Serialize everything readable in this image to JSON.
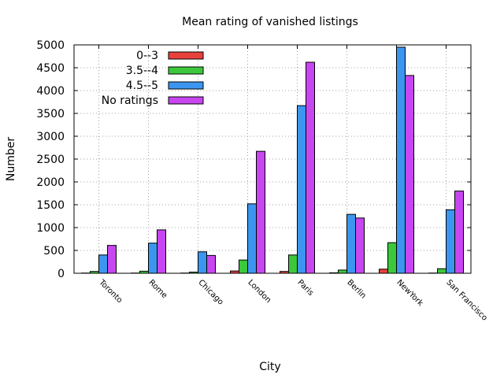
{
  "chart_data": {
    "type": "bar",
    "title": "Mean rating of vanished listings",
    "xlabel": "City",
    "ylabel": "Number",
    "ylim": [
      0,
      5000
    ],
    "yticks": [
      0,
      500,
      1000,
      1500,
      2000,
      2500,
      3000,
      3500,
      4000,
      4500,
      5000
    ],
    "grid": true,
    "legend_position": "top-left",
    "categories": [
      "Toronto",
      "Rome",
      "Chicago",
      "London",
      "Paris",
      "Berlin",
      "NewYork",
      "San Francisco"
    ],
    "series": [
      {
        "name": "0--3",
        "color": "#e8413c",
        "values": [
          5,
          5,
          5,
          50,
          40,
          10,
          90,
          5
        ]
      },
      {
        "name": "3.5--4",
        "color": "#3cc83c",
        "values": [
          40,
          45,
          25,
          290,
          400,
          70,
          670,
          100
        ]
      },
      {
        "name": "4.5--5",
        "color": "#3c96f0",
        "values": [
          400,
          660,
          470,
          1520,
          3670,
          1290,
          4950,
          1390
        ]
      },
      {
        "name": "No ratings",
        "color": "#c846f0",
        "values": [
          610,
          950,
          390,
          2670,
          4620,
          1210,
          4330,
          1800
        ]
      }
    ]
  }
}
